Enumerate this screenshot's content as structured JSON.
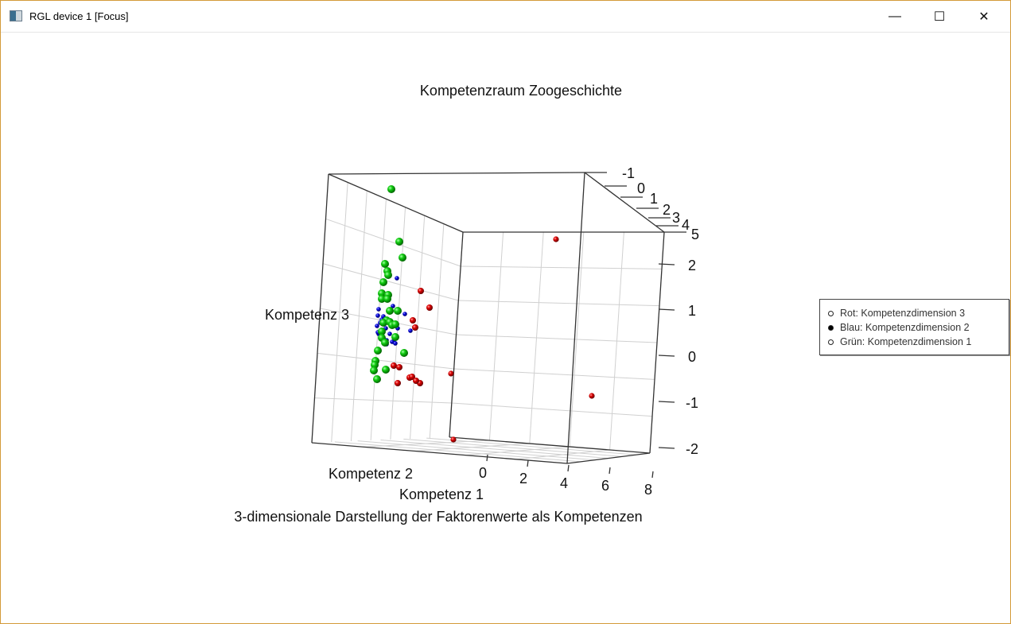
{
  "window": {
    "title": "RGL device 1 [Focus]",
    "minimize": "—",
    "maximize": "☐",
    "close": "✕"
  },
  "chart_data": {
    "type": "scatter",
    "title": "Kompetenzraum Zoogeschichte",
    "subtitle": "3-dimensionale Darstellung der Faktorenwerte als Kompetenzen",
    "xlabel": "Kompetenz 1",
    "ylabel": "Kompetenz 2",
    "zlabel": "Kompetenz 3",
    "x_ticks": [
      "0",
      "2",
      "4",
      "6",
      "8"
    ],
    "y_ticks": [
      "-1",
      "0",
      "1",
      "2",
      "3",
      "4",
      "5"
    ],
    "z_ticks": [
      "2",
      "1",
      "0",
      "-1",
      "-2"
    ],
    "xlim": [
      -1,
      8
    ],
    "ylim": [
      -1,
      5
    ],
    "zlim": [
      -2,
      2.5
    ],
    "grid": true,
    "legend_position": "right",
    "series": [
      {
        "name": "Rot: Kompetenzdimension 3",
        "color": "#dd0000",
        "marker": "hollow"
      },
      {
        "name": "Blau: Kompetenzdimension 2",
        "color": "#0000cc",
        "marker": "filled"
      },
      {
        "name": "Grün: Kompetenzdimension 1",
        "color": "#00bb00",
        "marker": "hollow"
      }
    ]
  }
}
